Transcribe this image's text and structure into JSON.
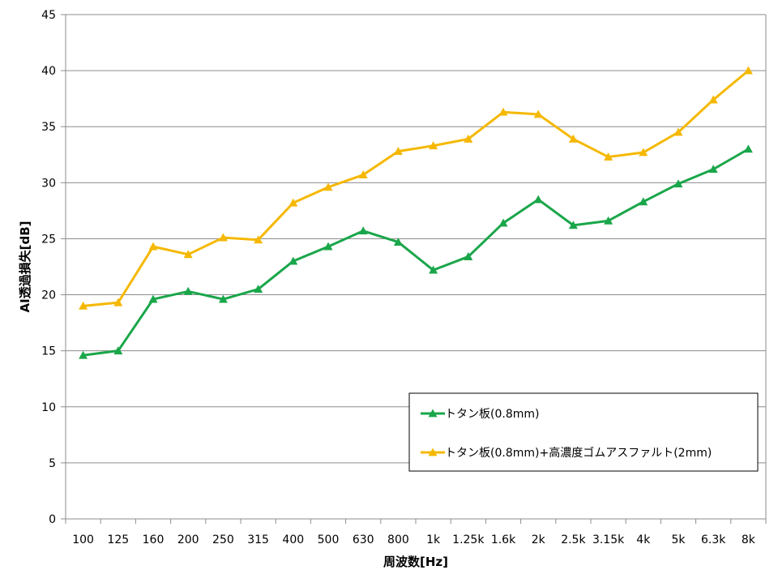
{
  "chart_data": {
    "type": "line",
    "xlabel": "周波数[Hz]",
    "ylabel": "AI透過損失[dB]",
    "ylim": [
      0,
      45
    ],
    "yticks": [
      0,
      5,
      10,
      15,
      20,
      25,
      30,
      35,
      40,
      45
    ],
    "grid": "horizontal",
    "legend_position": "bottom-right",
    "categories": [
      "100",
      "125",
      "160",
      "200",
      "250",
      "315",
      "400",
      "500",
      "630",
      "800",
      "1k",
      "1.25k",
      "1.6k",
      "2k",
      "2.5k",
      "3.15k",
      "4k",
      "5k",
      "6.3k",
      "8k"
    ],
    "series": [
      {
        "name": "トタン板(0.8mm)",
        "color": "#1aa64a",
        "marker": "triangle",
        "values": [
          14.6,
          15.0,
          19.6,
          20.3,
          19.6,
          20.5,
          23.0,
          24.3,
          25.7,
          24.7,
          22.2,
          23.4,
          26.4,
          28.5,
          26.2,
          26.6,
          28.3,
          29.9,
          31.2,
          33.0
        ]
      },
      {
        "name": "トタン板(0.8mm)+高濃度ゴムアスファルト(2mm)",
        "color": "#f5b800",
        "marker": "triangle",
        "values": [
          19.0,
          19.3,
          24.3,
          23.6,
          25.1,
          24.9,
          28.2,
          29.6,
          30.7,
          32.8,
          33.3,
          33.9,
          36.3,
          36.1,
          33.9,
          32.3,
          32.7,
          34.5,
          37.4,
          40.0
        ]
      }
    ]
  }
}
